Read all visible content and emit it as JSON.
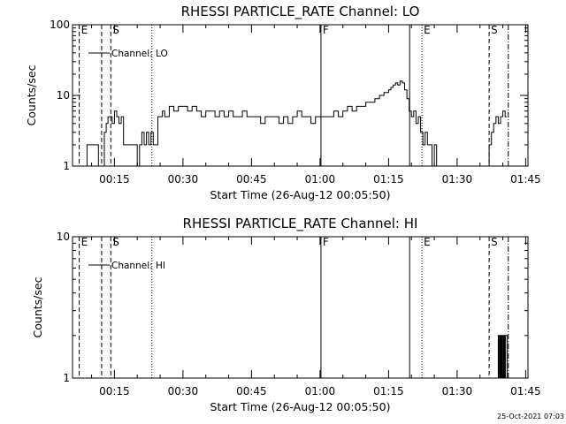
{
  "footer": {
    "timestamp": "25-Oct-2021 07:03"
  },
  "chart_data": [
    {
      "type": "line",
      "title": "RHESSI PARTICLE_RATE Channel: LO",
      "xlabel": "Start Time (26-Aug-12 00:05:50)",
      "ylabel": "Counts/sec",
      "y_scale": "log",
      "ylim": [
        1,
        100
      ],
      "xlim_minutes": [
        5.83,
        105.5
      ],
      "x_tick_labels": [
        "00:15",
        "00:30",
        "00:45",
        "01:00",
        "01:15",
        "01:30",
        "01:45"
      ],
      "x_tick_minutes": [
        15,
        30,
        45,
        60,
        75,
        90,
        105
      ],
      "y_tick_labels": [
        "1",
        "10",
        "100"
      ],
      "y_tick_values": [
        1,
        10,
        100
      ],
      "legend": {
        "label": "Channel: LO",
        "position": "top-left"
      },
      "series": [
        {
          "name": "Channel: LO",
          "x": [
            8.6,
            9.0,
            9.5,
            10.0,
            10.5,
            11.0,
            11.5,
            12.0,
            12.5,
            12.8,
            13.2,
            13.6,
            14.0,
            14.5,
            15.0,
            15.5,
            16.0,
            16.5,
            17.0,
            17.5,
            18.0,
            18.5,
            19.0,
            19.5,
            20.0,
            20.5,
            21.0,
            21.5,
            22.0,
            22.5,
            23.0,
            23.5,
            24.0,
            24.5,
            25.0,
            25.5,
            26.0,
            27.0,
            28.0,
            29.0,
            30.0,
            31.0,
            32.0,
            33.0,
            34.0,
            35.0,
            36.0,
            37.0,
            38.0,
            39.0,
            40.0,
            41.0,
            42.0,
            43.0,
            44.0,
            45.0,
            46.0,
            47.0,
            48.0,
            49.0,
            50.0,
            51.0,
            52.0,
            53.0,
            54.0,
            55.0,
            56.0,
            57.0,
            58.0,
            59.0,
            60.0,
            61.0,
            62.0,
            63.0,
            64.0,
            65.0,
            66.0,
            67.0,
            68.0,
            69.0,
            70.0,
            71.0,
            72.0,
            73.0,
            74.0,
            75.0,
            75.5,
            76.0,
            76.5,
            77.0,
            77.5,
            78.0,
            78.5,
            79.0,
            79.5,
            80.0,
            80.5,
            81.0,
            81.5,
            82.0,
            82.5,
            83.0,
            83.5,
            84.0,
            84.5,
            85.0,
            85.5,
            86.0,
            86.5,
            87.0,
            87.5,
            88.0,
            88.5,
            89.0,
            89.5,
            90.0,
            90.5,
            91.0,
            91.5,
            92.0,
            92.5,
            93.0,
            93.5,
            94.0,
            94.5,
            95.0,
            95.5,
            96.0,
            96.5,
            97.0,
            97.5,
            98.0,
            98.5,
            99.0,
            99.5,
            100.0,
            100.5
          ],
          "values": [
            1.0,
            2.0,
            2.0,
            2.0,
            2.0,
            2.0,
            1.0,
            1.0,
            1.0,
            3.0,
            4.0,
            5.0,
            5.0,
            4.0,
            6.0,
            5.0,
            4.0,
            5.0,
            2.0,
            2.0,
            2.0,
            2.0,
            2.0,
            2.0,
            1.0,
            2.0,
            3.0,
            2.0,
            3.0,
            2.0,
            3.0,
            2.0,
            2.0,
            5.0,
            5.0,
            6.0,
            5.0,
            7.0,
            6.0,
            7.0,
            7.0,
            6.0,
            7.0,
            6.0,
            5.0,
            6.0,
            6.0,
            5.0,
            6.0,
            5.0,
            6.0,
            5.0,
            5.0,
            6.0,
            5.0,
            5.0,
            5.0,
            4.0,
            5.0,
            5.0,
            5.0,
            4.0,
            5.0,
            4.0,
            5.0,
            6.0,
            5.0,
            5.0,
            4.0,
            5.0,
            5.0,
            5.0,
            5.0,
            6.0,
            5.0,
            6.0,
            7.0,
            6.0,
            7.0,
            7.0,
            8.0,
            8.0,
            9.0,
            10.0,
            11.0,
            12.0,
            13.0,
            14.0,
            15.0,
            14.0,
            16.0,
            15.0,
            12.0,
            9.0,
            6.0,
            5.0,
            6.0,
            4.0,
            5.0,
            3.0,
            2.0,
            3.0,
            2.0,
            2.0,
            1.0,
            2.0,
            1.0,
            1.0,
            1.0,
            1.0,
            1.0,
            1.0,
            1.0,
            1.0,
            1.0,
            1.0,
            1.0,
            1.0,
            1.0,
            1.0,
            1.0,
            1.0,
            1.0,
            1.0,
            1.0,
            1.0,
            1.0,
            1.0,
            1.0,
            2.0,
            3.0,
            4.0,
            5.0,
            4.0,
            5.0,
            6.0,
            5.0
          ]
        }
      ],
      "vertical_markers": [
        {
          "label": "E",
          "minute": 7.3,
          "style": "dash"
        },
        {
          "label": "",
          "minute": 12.2,
          "style": "dash"
        },
        {
          "label": "S",
          "minute": 14.2,
          "style": "dash"
        },
        {
          "label": "",
          "minute": 23.2,
          "style": "dot"
        },
        {
          "label": "F",
          "minute": 60.2,
          "style": "solid"
        },
        {
          "label": "",
          "minute": 79.6,
          "style": "solid"
        },
        {
          "label": "E",
          "minute": 82.3,
          "style": "dot"
        },
        {
          "label": "S",
          "minute": 97.0,
          "style": "dash"
        },
        {
          "label": "",
          "minute": 101.2,
          "style": "dashdot"
        }
      ]
    },
    {
      "type": "line",
      "title": "RHESSI PARTICLE_RATE Channel: HI",
      "xlabel": "Start Time (26-Aug-12 00:05:50)",
      "ylabel": "Counts/sec",
      "y_scale": "log",
      "ylim": [
        1,
        10
      ],
      "xlim_minutes": [
        5.83,
        105.5
      ],
      "x_tick_labels": [
        "00:15",
        "00:30",
        "00:45",
        "01:00",
        "01:15",
        "01:30",
        "01:45"
      ],
      "x_tick_minutes": [
        15,
        30,
        45,
        60,
        75,
        90,
        105
      ],
      "y_tick_labels": [
        "1",
        "10"
      ],
      "y_tick_values": [
        1,
        10
      ],
      "legend": {
        "label": "Channel: HI",
        "position": "top-left"
      },
      "series": [
        {
          "name": "Channel: HI",
          "x": [
            98.6,
            98.8,
            99.0,
            99.2,
            99.4,
            99.6,
            99.8,
            100.0,
            100.2,
            100.4,
            100.6,
            100.8,
            101.0
          ],
          "values": [
            1.0,
            1.0,
            2.0,
            1.0,
            2.0,
            1.0,
            2.0,
            1.0,
            2.0,
            1.0,
            2.0,
            2.0,
            1.0
          ]
        }
      ],
      "vertical_markers": [
        {
          "label": "E",
          "minute": 7.3,
          "style": "dash"
        },
        {
          "label": "",
          "minute": 12.2,
          "style": "dash"
        },
        {
          "label": "S",
          "minute": 14.2,
          "style": "dash"
        },
        {
          "label": "",
          "minute": 23.2,
          "style": "dot"
        },
        {
          "label": "F",
          "minute": 60.2,
          "style": "solid"
        },
        {
          "label": "",
          "minute": 79.6,
          "style": "solid"
        },
        {
          "label": "E",
          "minute": 82.3,
          "style": "dot"
        },
        {
          "label": "S",
          "minute": 97.0,
          "style": "dash"
        },
        {
          "label": "",
          "minute": 101.2,
          "style": "dashdot"
        }
      ]
    }
  ]
}
